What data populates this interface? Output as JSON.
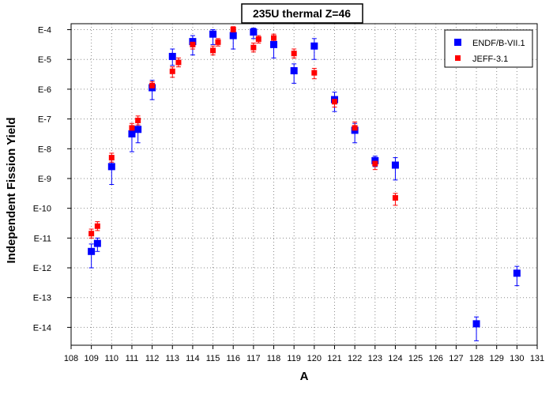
{
  "chart_data": {
    "type": "scatter",
    "title": "235U thermal Z=46",
    "xlabel": "A",
    "ylabel": "Independent Fission Yield",
    "xlim": [
      108,
      131
    ],
    "ylim_log10": [
      -14.6,
      -3.8
    ],
    "y_scale": "log",
    "grid": true,
    "legend_placement": "top-right",
    "x_ticks": [
      "108",
      "109",
      "110",
      "111",
      "112",
      "113",
      "114",
      "115",
      "116",
      "117",
      "118",
      "119",
      "120",
      "121",
      "122",
      "123",
      "124",
      "125",
      "126",
      "127",
      "128",
      "129",
      "130",
      "131"
    ],
    "y_ticks": [
      {
        "label": "E-4",
        "exp": -4
      },
      {
        "label": "E-5",
        "exp": -5
      },
      {
        "label": "E-6",
        "exp": -6
      },
      {
        "label": "E-7",
        "exp": -7
      },
      {
        "label": "E-8",
        "exp": -8
      },
      {
        "label": "E-9",
        "exp": -9
      },
      {
        "label": "E-10",
        "exp": -10
      },
      {
        "label": "E-11",
        "exp": -11
      },
      {
        "label": "E-12",
        "exp": -12
      },
      {
        "label": "E-13",
        "exp": -13
      },
      {
        "label": "E-14",
        "exp": -14
      }
    ],
    "series": [
      {
        "name": "ENDF/B-VII.1",
        "color": "#0000ff",
        "marker": "square",
        "points": [
          {
            "x": 109.0,
            "exp": -11.45,
            "lo": -12.0,
            "hi": -11.2
          },
          {
            "x": 109.3,
            "exp": -11.18,
            "lo": -11.45,
            "hi": -11.0
          },
          {
            "x": 110.0,
            "exp": -8.6,
            "lo": -9.2,
            "hi": -8.35
          },
          {
            "x": 111.0,
            "exp": -7.5,
            "lo": -8.1,
            "hi": -7.25
          },
          {
            "x": 111.3,
            "exp": -7.35,
            "lo": -7.8,
            "hi": -7.1
          },
          {
            "x": 112.0,
            "exp": -5.95,
            "lo": -6.35,
            "hi": -5.7
          },
          {
            "x": 113.0,
            "exp": -4.9,
            "lo": -5.2,
            "hi": -4.65
          },
          {
            "x": 114.0,
            "exp": -4.4,
            "lo": -4.85,
            "hi": -4.2
          },
          {
            "x": 115.0,
            "exp": -4.15,
            "lo": -4.5,
            "hi": -4.0
          },
          {
            "x": 116.0,
            "exp": -4.2,
            "lo": -4.65,
            "hi": -4.0
          },
          {
            "x": 117.0,
            "exp": -4.08,
            "lo": -4.3,
            "hi": -3.95
          },
          {
            "x": 118.0,
            "exp": -4.5,
            "lo": -4.95,
            "hi": -4.25
          },
          {
            "x": 119.0,
            "exp": -5.38,
            "lo": -5.8,
            "hi": -5.15
          },
          {
            "x": 120.0,
            "exp": -4.55,
            "lo": -5.0,
            "hi": -4.3
          },
          {
            "x": 121.0,
            "exp": -6.35,
            "lo": -6.75,
            "hi": -6.1
          },
          {
            "x": 122.0,
            "exp": -7.38,
            "lo": -7.8,
            "hi": -7.15
          },
          {
            "x": 123.0,
            "exp": -8.4,
            "lo": -8.6,
            "hi": -8.25
          },
          {
            "x": 124.0,
            "exp": -8.55,
            "lo": -9.05,
            "hi": -8.3
          },
          {
            "x": 128.0,
            "exp": -13.88,
            "lo": -14.45,
            "hi": -13.65
          },
          {
            "x": 130.0,
            "exp": -12.18,
            "lo": -12.6,
            "hi": -11.95
          }
        ]
      },
      {
        "name": "JEFF-3.1",
        "color": "#ff0000",
        "marker": "square",
        "points": [
          {
            "x": 109.0,
            "exp": -10.85,
            "lo": -11.0,
            "hi": -10.7
          },
          {
            "x": 109.3,
            "exp": -10.6,
            "lo": -10.75,
            "hi": -10.45
          },
          {
            "x": 110.0,
            "exp": -8.3,
            "lo": -8.45,
            "hi": -8.15
          },
          {
            "x": 111.0,
            "exp": -7.3,
            "lo": -7.45,
            "hi": -7.15
          },
          {
            "x": 111.3,
            "exp": -7.05,
            "lo": -7.2,
            "hi": -6.9
          },
          {
            "x": 112.0,
            "exp": -5.88,
            "lo": -6.05,
            "hi": -5.75
          },
          {
            "x": 113.0,
            "exp": -5.4,
            "lo": -5.6,
            "hi": -5.25
          },
          {
            "x": 113.3,
            "exp": -5.1,
            "lo": -5.25,
            "hi": -4.95
          },
          {
            "x": 114.0,
            "exp": -4.5,
            "lo": -4.65,
            "hi": -4.35
          },
          {
            "x": 115.0,
            "exp": -4.7,
            "lo": -4.85,
            "hi": -4.55
          },
          {
            "x": 115.25,
            "exp": -4.42,
            "lo": -4.55,
            "hi": -4.3
          },
          {
            "x": 116.0,
            "exp": -4.0,
            "lo": -4.1,
            "hi": -3.9
          },
          {
            "x": 117.0,
            "exp": -4.6,
            "lo": -4.75,
            "hi": -4.45
          },
          {
            "x": 117.25,
            "exp": -4.32,
            "lo": -4.45,
            "hi": -4.2
          },
          {
            "x": 118.0,
            "exp": -4.28,
            "lo": -4.4,
            "hi": -4.15
          },
          {
            "x": 119.0,
            "exp": -4.8,
            "lo": -4.95,
            "hi": -4.65
          },
          {
            "x": 120.0,
            "exp": -5.45,
            "lo": -5.65,
            "hi": -5.3
          },
          {
            "x": 121.0,
            "exp": -6.42,
            "lo": -6.6,
            "hi": -6.25
          },
          {
            "x": 122.0,
            "exp": -7.3,
            "lo": -7.45,
            "hi": -7.1
          },
          {
            "x": 123.0,
            "exp": -8.5,
            "lo": -8.7,
            "hi": -8.3
          },
          {
            "x": 124.0,
            "exp": -9.65,
            "lo": -9.9,
            "hi": -9.5
          }
        ]
      }
    ]
  }
}
